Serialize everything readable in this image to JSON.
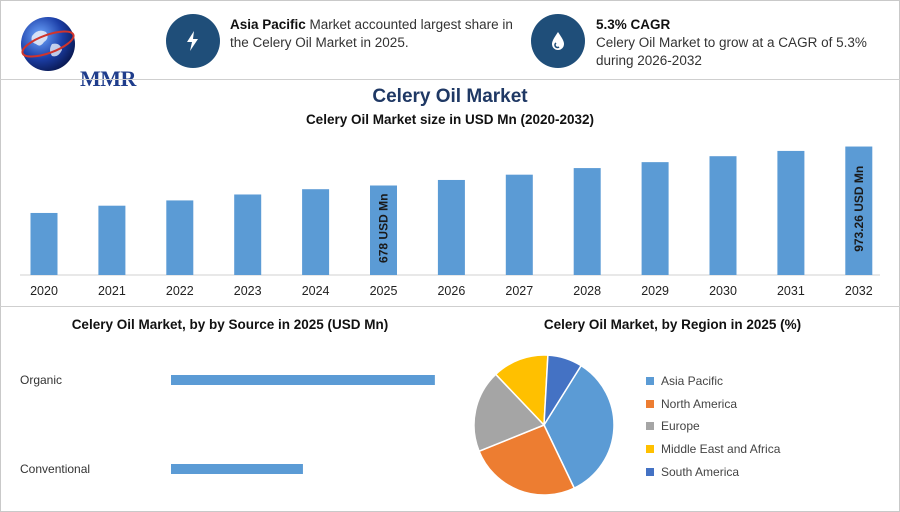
{
  "header": {
    "logo_text": "MMR",
    "info1": {
      "bold": "Asia Pacific",
      "text": " Market accounted largest share in the Celery Oil Market in 2025.",
      "icon": "lightning-icon"
    },
    "info2": {
      "bold": "5.3% CAGR",
      "text": "Celery Oil Market to grow at a CAGR of 5.3% during 2026-2032",
      "icon": "drop-icon"
    }
  },
  "colors": {
    "bar": "#5b9bd5",
    "icon_bg": "#1f4e79",
    "title": "#1f3864"
  },
  "chart_data": [
    {
      "type": "bar",
      "title": "Celery Oil Market",
      "subtitle": "Celery Oil Market size in USD Mn (2020-2032)",
      "categories": [
        "2020",
        "2021",
        "2022",
        "2023",
        "2024",
        "2025",
        "2026",
        "2027",
        "2028",
        "2029",
        "2030",
        "2031",
        "2032"
      ],
      "values": [
        470,
        525,
        565,
        610,
        650,
        678,
        720,
        760,
        810,
        855,
        900,
        940,
        973.26
      ],
      "annotations": [
        {
          "category": "2025",
          "label": "678 USD Mn"
        },
        {
          "category": "2032",
          "label": "973.26 USD Mn"
        }
      ],
      "ylim": [
        0,
        1000
      ]
    },
    {
      "type": "bar",
      "orientation": "horizontal",
      "title": "Celery Oil Market, by by Source in 2025 (USD Mn)",
      "categories": [
        "Organic",
        "Conventional"
      ],
      "values": [
        420,
        210
      ],
      "xlim": [
        0,
        460
      ]
    },
    {
      "type": "pie",
      "title": "Celery Oil Market, by Region in 2025 (%)",
      "labels": [
        "Asia Pacific",
        "North America",
        "Europe",
        "Middle East and Africa",
        "South America"
      ],
      "values": [
        34,
        26,
        19,
        13,
        8
      ],
      "colors": [
        "#5b9bd5",
        "#ed7d31",
        "#a5a5a5",
        "#ffc000",
        "#4472c4"
      ],
      "legend_position": "right"
    }
  ]
}
